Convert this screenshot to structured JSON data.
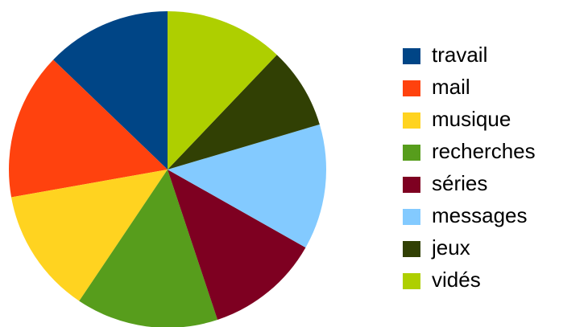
{
  "chart_data": {
    "type": "pie",
    "categories": [
      "travail",
      "mail",
      "musique",
      "recherches",
      "séries",
      "messages",
      "jeux",
      "vidés"
    ],
    "values": [
      12.8,
      15.0,
      12.8,
      14.5,
      11.7,
      12.8,
      8.3,
      12.1
    ],
    "colors": [
      "#004586",
      "#ff420e",
      "#ffd320",
      "#579d1c",
      "#7e0021",
      "#83caff",
      "#314004",
      "#aecf00"
    ],
    "legend": "right"
  }
}
